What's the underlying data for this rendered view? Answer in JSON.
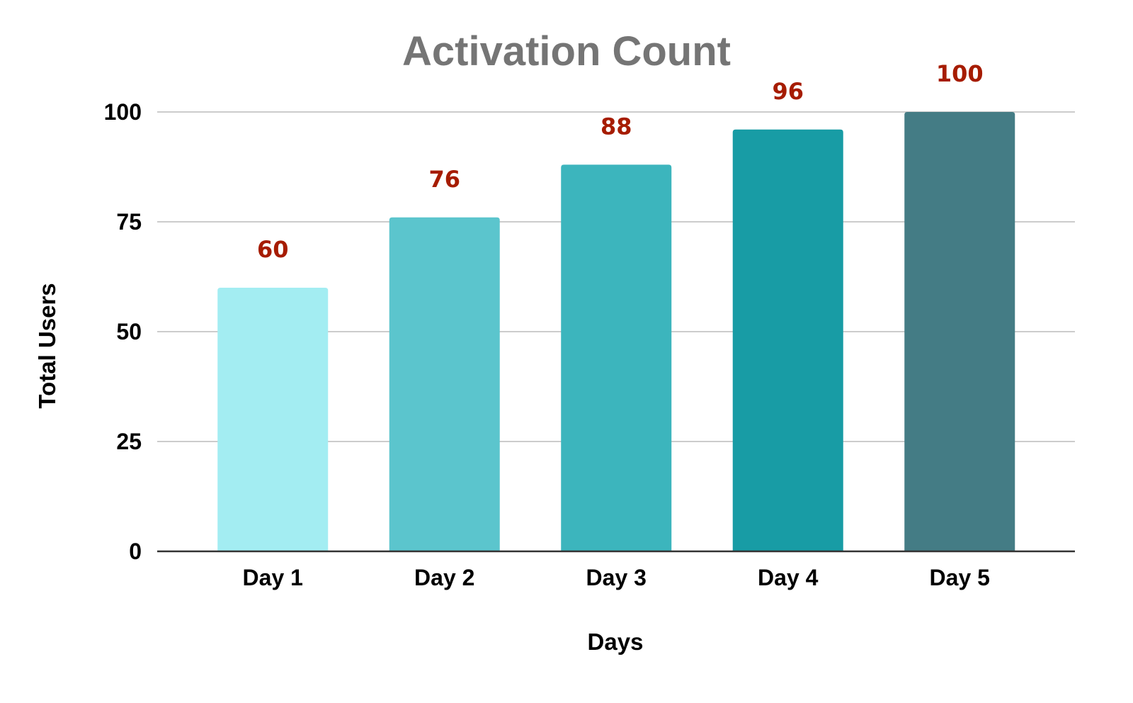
{
  "chart_data": {
    "type": "bar",
    "title": "Activation Count",
    "xlabel": "Days",
    "ylabel": "Total Users",
    "categories": [
      "Day 1",
      "Day 2",
      "Day 3",
      "Day 4",
      "Day 5"
    ],
    "values": [
      60,
      76,
      88,
      96,
      100
    ],
    "data_labels": [
      "60",
      "76",
      "88",
      "96",
      "100"
    ],
    "yticks": [
      0,
      25,
      50,
      75,
      100
    ],
    "ylim": [
      0,
      100
    ],
    "grid": true,
    "legend": "none",
    "colors": {
      "bars": [
        "#a3edf2",
        "#5bc5cd",
        "#3cb5bd",
        "#189ca5",
        "#447c85"
      ],
      "data_label": "#a61c00",
      "title": "#757575",
      "gridline": "#cccccc",
      "baseline": "#333333"
    }
  }
}
